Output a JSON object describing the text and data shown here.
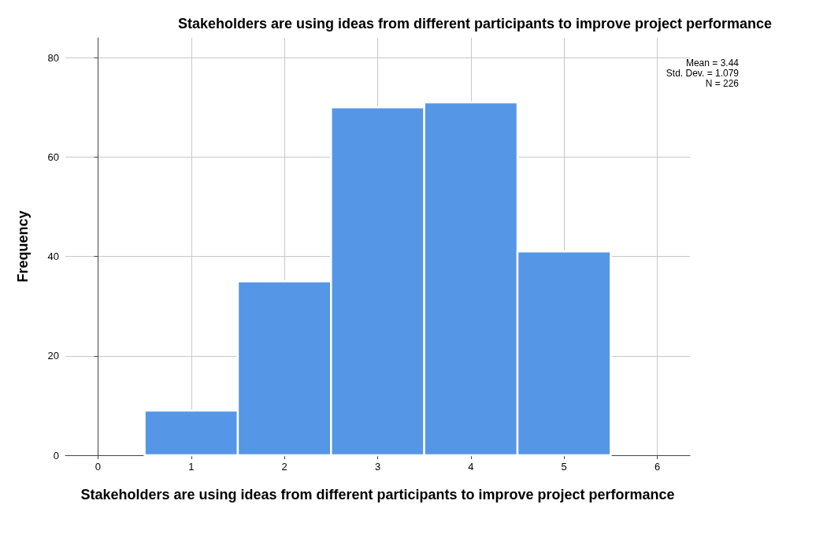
{
  "chart_data": {
    "type": "histogram",
    "title": "Stakeholders are using ideas from different participants to improve project performance",
    "xlabel": "Stakeholders are using ideas from different participants to improve project performance",
    "ylabel": "Frequency",
    "bins": [
      0.5,
      1.5,
      2.5,
      3.5,
      4.5,
      5.5
    ],
    "values": [
      9,
      35,
      70,
      71,
      41
    ],
    "color": "#5596e6",
    "xlim": [
      -0.35,
      6.35
    ],
    "xticks": [
      0,
      1,
      2,
      3,
      4,
      5,
      6
    ],
    "ylim": [
      0,
      84
    ],
    "yticks": [
      0,
      20,
      40,
      60,
      80
    ],
    "grid": true,
    "annotations": [
      "Mean = 3.44",
      "Std. Dev. = 1.079",
      "N = 226"
    ]
  }
}
